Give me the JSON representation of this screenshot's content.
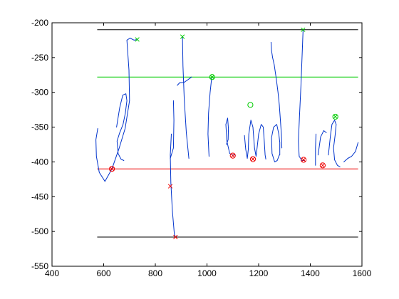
{
  "chart_data": {
    "type": "line",
    "title": "",
    "xlabel": "",
    "ylabel": "",
    "xlim": [
      400,
      1600
    ],
    "ylim": [
      -550,
      -200
    ],
    "grid": false,
    "x_ticks": [
      400,
      600,
      800,
      1000,
      1200,
      1400,
      1600
    ],
    "y_ticks": [
      -200,
      -250,
      -300,
      -350,
      -400,
      -450,
      -500,
      -550
    ],
    "colors": {
      "ink": "#0033cc",
      "ascender_line": "#000000",
      "descender_line": "#000000",
      "upper_line": "#00cc00",
      "base_line": "#ee0000",
      "upper_markers": "#00cc00",
      "base_markers": "#ee0000"
    },
    "reference_lines": [
      {
        "name": "top-reference-line",
        "y": -210,
        "x_from": 575,
        "x_to": 1585,
        "color": "#000000"
      },
      {
        "name": "upper-reference-line",
        "y": -278,
        "x_from": 575,
        "x_to": 1585,
        "color": "#00cc00"
      },
      {
        "name": "base-reference-line",
        "y": -410,
        "x_from": 575,
        "x_to": 1585,
        "color": "#ee0000"
      },
      {
        "name": "bottom-reference-line",
        "y": -508,
        "x_from": 575,
        "x_to": 1585,
        "color": "#000000"
      }
    ],
    "series": [
      {
        "points": [
          [
            577,
            -352
          ],
          [
            570,
            -368
          ],
          [
            572,
            -392
          ],
          [
            583,
            -415
          ],
          [
            605,
            -428
          ],
          [
            632,
            -410
          ],
          [
            660,
            -380
          ],
          [
            683,
            -352
          ],
          [
            700,
            -312
          ],
          [
            698,
            -268
          ],
          [
            690,
            -225
          ],
          [
            702,
            -222
          ],
          [
            718,
            -225
          ],
          [
            730,
            -224
          ]
        ]
      },
      {
        "points": [
          [
            650,
            -350
          ],
          [
            662,
            -322
          ],
          [
            674,
            -304
          ],
          [
            686,
            -302
          ],
          [
            690,
            -312
          ],
          [
            684,
            -330
          ],
          [
            675,
            -346
          ],
          [
            662,
            -358
          ],
          [
            652,
            -370
          ],
          [
            656,
            -388
          ],
          [
            667,
            -396
          ],
          [
            678,
            -398
          ]
        ]
      },
      {
        "points": [
          [
            858,
            -395
          ],
          [
            870,
            -380
          ],
          [
            872,
            -340
          ],
          [
            870,
            -312
          ]
        ]
      },
      {
        "points": [
          [
            862,
            -360
          ],
          [
            858,
            -390
          ],
          [
            860,
            -430
          ],
          [
            866,
            -470
          ],
          [
            874,
            -505
          ],
          [
            878,
            -508
          ]
        ]
      },
      {
        "points": [
          [
            905,
            -220
          ],
          [
            907,
            -262
          ],
          [
            912,
            -310
          ],
          [
            920,
            -358
          ],
          [
            930,
            -395
          ]
        ]
      },
      {
        "points": [
          [
            885,
            -290
          ],
          [
            895,
            -286
          ],
          [
            910,
            -286
          ],
          [
            922,
            -283
          ],
          [
            940,
            -278
          ]
        ]
      },
      {
        "points": [
          [
            1018,
            -280
          ],
          [
            1012,
            -300
          ],
          [
            1006,
            -330
          ],
          [
            1004,
            -360
          ],
          [
            1008,
            -392
          ]
        ]
      },
      {
        "points": [
          [
            1075,
            -375
          ],
          [
            1082,
            -368
          ],
          [
            1083,
            -352
          ],
          [
            1080,
            -337
          ],
          [
            1073,
            -346
          ],
          [
            1077,
            -370
          ],
          [
            1088,
            -388
          ],
          [
            1100,
            -390
          ],
          [
            1108,
            -390
          ]
        ]
      },
      {
        "points": [
          [
            1145,
            -362
          ],
          [
            1150,
            -382
          ],
          [
            1156,
            -395
          ],
          [
            1160,
            -382
          ],
          [
            1162,
            -360
          ],
          [
            1170,
            -340
          ],
          [
            1178,
            -350
          ],
          [
            1184,
            -380
          ],
          [
            1190,
            -392
          ],
          [
            1194,
            -380
          ],
          [
            1200,
            -360
          ],
          [
            1210,
            -346
          ],
          [
            1218,
            -350
          ],
          [
            1222,
            -372
          ],
          [
            1225,
            -390
          ],
          [
            1228,
            -396
          ]
        ]
      },
      {
        "points": [
          [
            1282,
            -390
          ],
          [
            1282,
            -372
          ],
          [
            1278,
            -360
          ],
          [
            1270,
            -346
          ],
          [
            1258,
            -350
          ],
          [
            1250,
            -365
          ],
          [
            1252,
            -388
          ],
          [
            1262,
            -400
          ],
          [
            1272,
            -398
          ],
          [
            1280,
            -390
          ]
        ]
      },
      {
        "points": [
          [
            1248,
            -228
          ],
          [
            1250,
            -240
          ],
          [
            1254,
            -250
          ],
          [
            1260,
            -260
          ],
          [
            1268,
            -280
          ],
          [
            1275,
            -300
          ],
          [
            1280,
            -318
          ],
          [
            1284,
            -338
          ],
          [
            1288,
            -360
          ],
          [
            1290,
            -380
          ]
        ]
      },
      {
        "points": [
          [
            1372,
            -210
          ],
          [
            1368,
            -250
          ],
          [
            1364,
            -290
          ],
          [
            1358,
            -335
          ],
          [
            1354,
            -370
          ],
          [
            1357,
            -392
          ],
          [
            1368,
            -398
          ],
          [
            1378,
            -398
          ]
        ]
      },
      {
        "points": [
          [
            1422,
            -360
          ],
          [
            1420,
            -380
          ],
          [
            1420,
            -405
          ]
        ]
      },
      {
        "points": [
          [
            1430,
            -390
          ],
          [
            1440,
            -364
          ],
          [
            1452,
            -355
          ],
          [
            1462,
            -358
          ]
        ]
      },
      {
        "points": [
          [
            1470,
            -390
          ],
          [
            1478,
            -362
          ],
          [
            1484,
            -346
          ],
          [
            1494,
            -340
          ],
          [
            1500,
            -346
          ],
          [
            1496,
            -362
          ],
          [
            1490,
            -380
          ],
          [
            1494,
            -397
          ],
          [
            1505,
            -405
          ],
          [
            1515,
            -407
          ]
        ]
      },
      {
        "points": [
          [
            1530,
            -400
          ],
          [
            1545,
            -395
          ],
          [
            1560,
            -392
          ],
          [
            1575,
            -385
          ],
          [
            1585,
            -372
          ]
        ]
      }
    ],
    "upper_markers": [
      {
        "style": "x",
        "x": 730,
        "y": -224
      },
      {
        "style": "x",
        "x": 905,
        "y": -220
      },
      {
        "style": "x",
        "x": 1372,
        "y": -210
      },
      {
        "style": "circle-x",
        "x": 1020,
        "y": -278
      },
      {
        "style": "circle",
        "x": 1168,
        "y": -318
      },
      {
        "style": "circle-x",
        "x": 1497,
        "y": -335
      }
    ],
    "base_markers": [
      {
        "style": "circle-x",
        "x": 632,
        "y": -410
      },
      {
        "style": "x",
        "x": 858,
        "y": -435
      },
      {
        "style": "x",
        "x": 878,
        "y": -508
      },
      {
        "style": "circle-x",
        "x": 1100,
        "y": -391
      },
      {
        "style": "circle-x",
        "x": 1178,
        "y": -396
      },
      {
        "style": "circle-x",
        "x": 1374,
        "y": -397
      },
      {
        "style": "circle-x",
        "x": 1448,
        "y": -405
      }
    ]
  }
}
